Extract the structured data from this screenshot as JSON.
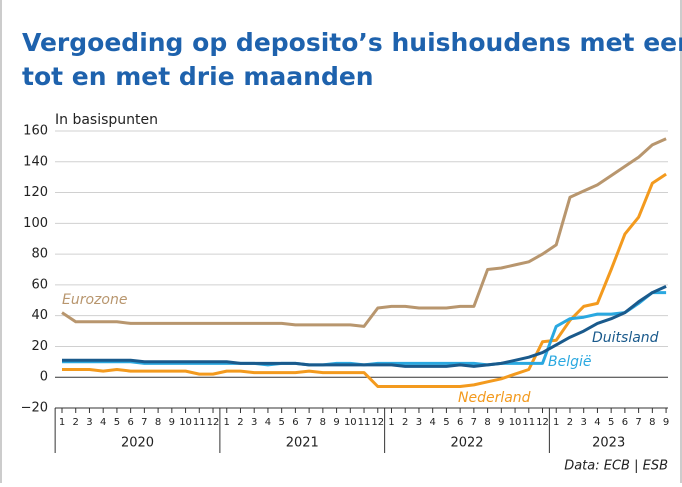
{
  "chart_data": {
    "type": "line",
    "title": "Vergoeding op deposito’s huishoudens met een looptijd tot en met drie maanden",
    "subtitle": "In basispunten",
    "source": "Data: ECB | ESB",
    "category_groups": [
      {
        "label": "2020",
        "categories": [
          "1",
          "2",
          "3",
          "4",
          "5",
          "6",
          "7",
          "8",
          "9",
          "10",
          "11",
          "12"
        ]
      },
      {
        "label": "2021",
        "categories": [
          "1",
          "2",
          "3",
          "4",
          "5",
          "6",
          "7",
          "8",
          "9",
          "10",
          "11",
          "12"
        ]
      },
      {
        "label": "2022",
        "categories": [
          "1",
          "2",
          "3",
          "4",
          "5",
          "6",
          "7",
          "8",
          "9",
          "10",
          "11",
          "12"
        ]
      },
      {
        "label": "2023",
        "categories": [
          "1",
          "2",
          "3",
          "4",
          "5",
          "6",
          "7",
          "8",
          "9"
        ]
      }
    ],
    "ylim": [
      -20,
      160
    ],
    "yticks": [
      {
        "value": -20,
        "label": "−20"
      },
      0,
      20,
      40,
      60,
      80,
      100,
      120,
      140,
      160
    ],
    "grid": true,
    "series": [
      {
        "name": "Eurozone",
        "color": "#b8966e",
        "values": [
          42,
          36,
          36,
          36,
          36,
          35,
          35,
          35,
          35,
          35,
          35,
          35,
          35,
          35,
          35,
          35,
          35,
          34,
          34,
          34,
          34,
          34,
          33,
          45,
          46,
          46,
          45,
          45,
          45,
          46,
          46,
          70,
          71,
          73,
          75,
          80,
          86,
          117,
          121,
          125,
          131,
          137,
          143,
          151,
          155
        ]
      },
      {
        "name": "Nederland",
        "color": "#f39a1e",
        "values": [
          5,
          5,
          5,
          4,
          5,
          4,
          4,
          4,
          4,
          4,
          2,
          2,
          4,
          4,
          3,
          3,
          3,
          3,
          4,
          3,
          3,
          3,
          3,
          -6,
          -6,
          -6,
          -6,
          -6,
          -6,
          -6,
          -5,
          -3,
          -1,
          2,
          5,
          23,
          24,
          37,
          46,
          48,
          70,
          93,
          104,
          126,
          132
        ]
      },
      {
        "name": "België",
        "color": "#2aa8e0",
        "values": [
          10,
          10,
          10,
          10,
          10,
          10,
          9,
          9,
          9,
          9,
          9,
          9,
          9,
          9,
          9,
          8,
          9,
          9,
          8,
          8,
          9,
          9,
          8,
          9,
          9,
          9,
          9,
          9,
          9,
          9,
          9,
          8,
          9,
          9,
          9,
          9,
          33,
          38,
          39,
          41,
          41,
          42,
          48,
          55,
          55
        ]
      },
      {
        "name": "Duitsland",
        "color": "#1a5a8c",
        "values": [
          11,
          11,
          11,
          11,
          11,
          11,
          10,
          10,
          10,
          10,
          10,
          10,
          10,
          9,
          9,
          9,
          9,
          9,
          8,
          8,
          8,
          8,
          8,
          8,
          8,
          7,
          7,
          7,
          7,
          8,
          7,
          8,
          9,
          11,
          13,
          16,
          21,
          26,
          30,
          35,
          38,
          42,
          49,
          55,
          59
        ]
      }
    ]
  }
}
